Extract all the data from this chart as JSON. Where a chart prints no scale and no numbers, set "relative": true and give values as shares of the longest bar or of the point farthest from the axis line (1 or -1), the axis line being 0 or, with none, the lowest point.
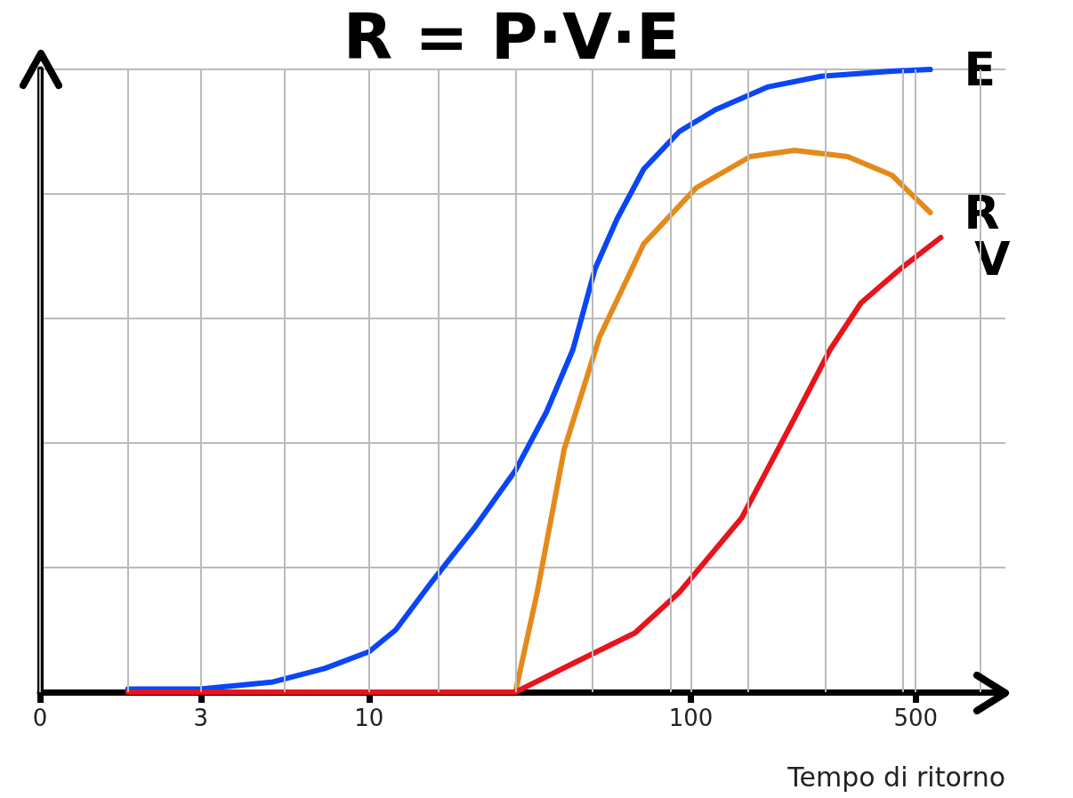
{
  "chart_data": {
    "type": "line",
    "title": "R = P·V·E",
    "xlabel": "Tempo di ritorno",
    "relative": true,
    "log": "x",
    "grid": true,
    "marker": "none",
    "line_style": "solid",
    "xlim": [
      0,
      950
    ],
    "xticks": [
      0,
      {
        "value": 1.78,
        "label": null
      },
      3,
      {
        "value": 5.47,
        "label": null
      },
      10,
      {
        "value": 16.4,
        "label": null
      },
      {
        "value": 28.5,
        "label": null
      },
      {
        "value": 49.5,
        "label": null
      },
      {
        "value": 86.5,
        "label": null
      },
      100,
      {
        "value": 151,
        "label": null
      },
      {
        "value": 262,
        "label": null
      },
      {
        "value": 455,
        "label": null
      },
      500,
      {
        "value": 796,
        "label": null
      }
    ],
    "series": [
      {
        "name": "E",
        "color": "#0a46f5",
        "x": [
          1.78,
          3,
          4.98,
          7.28,
          10,
          12.1,
          15.6,
          21.4,
          28.5,
          35.6,
          43.0,
          50.4,
          59.0,
          71.4,
          92.0,
          119,
          174,
          254,
          422,
          555
        ],
        "values": [
          0.005,
          0.005,
          0.016,
          0.038,
          0.065,
          0.1,
          0.176,
          0.266,
          0.356,
          0.45,
          0.55,
          0.68,
          0.76,
          0.84,
          0.9,
          0.935,
          0.972,
          0.989,
          0.997,
          1.0
        ]
      },
      {
        "name": "R",
        "color": "#e58a1a",
        "x": [
          28.5,
          33.3,
          40.4,
          52.0,
          71.4,
          104,
          153,
          210,
          307,
          422,
          555
        ],
        "values": [
          0,
          0.16,
          0.39,
          0.57,
          0.72,
          0.81,
          0.86,
          0.87,
          0.86,
          0.83,
          0.77
        ]
      },
      {
        "name": "V",
        "color": "#e8141c",
        "x": [
          1.78,
          10,
          28.5,
          43.0,
          67,
          92,
          144,
          210,
          271,
          338,
          449,
          598
        ],
        "values": [
          0,
          0,
          0,
          0.046,
          0.095,
          0.16,
          0.28,
          0.44,
          0.55,
          0.625,
          0.68,
          0.73
        ]
      }
    ]
  }
}
